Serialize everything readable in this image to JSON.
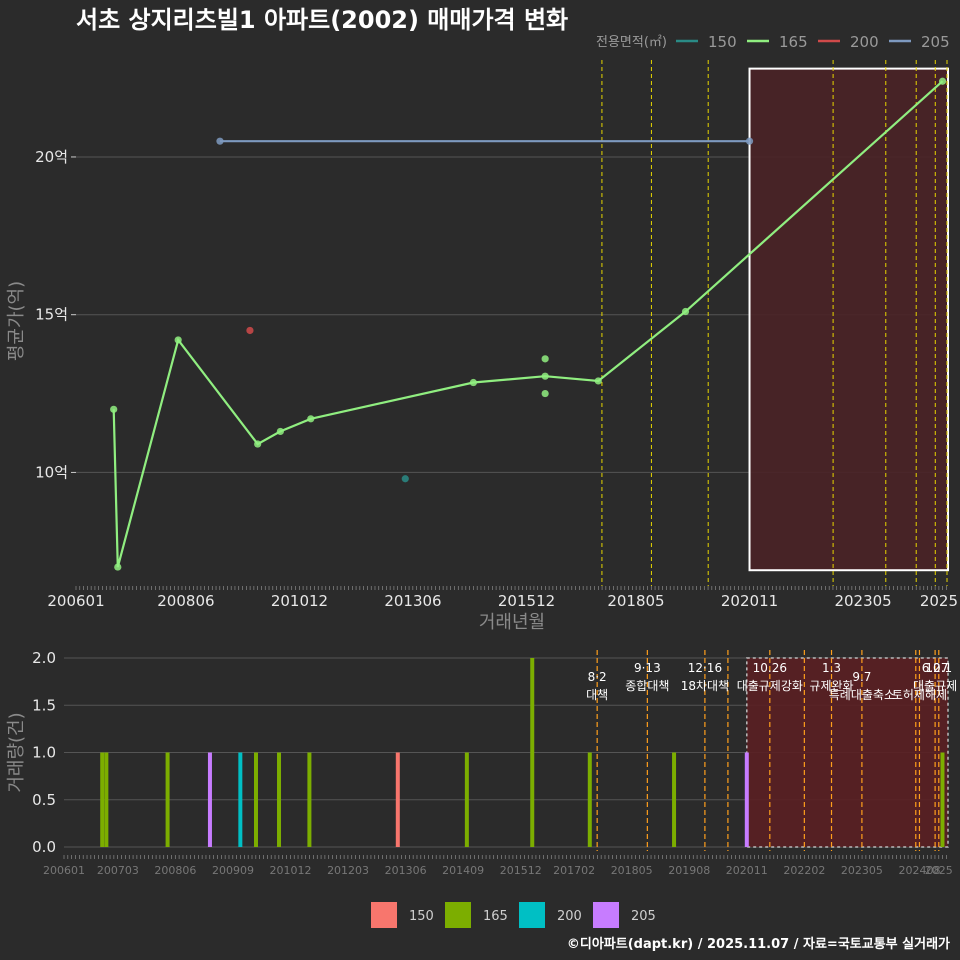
{
  "title": "서초 상지리츠빌1 아파트(2002) 매매가격 변화",
  "footer": "©디아파트(dapt.kr) / 2025.11.07 / 자료=국토교통부 실거래가",
  "legend_title": "전용면적(㎡)",
  "colors": {
    "bg": "#2b2b2b",
    "grid": "#555555",
    "s150": "#f8766d",
    "s165": "#7cae00",
    "s200": "#00bfc4",
    "s205": "#c77cff",
    "line150": "#2a8b86",
    "line165": "#90ee80",
    "line200": "#d04a4a",
    "line205": "#7e9ac0",
    "vline": "#e6d500",
    "vline_bottom": "#ff9f1c",
    "highlight_fill": "#4a2226",
    "highlight_fill_bottom": "#5a1f22"
  },
  "chart_data": [
    {
      "type": "line",
      "title": "서초 상지리츠빌1 아파트(2002) 매매가격 변화",
      "xlabel": "거래년월",
      "ylabel": "평균가(억)",
      "x_ticks": [
        "200601",
        "200806",
        "201012",
        "201306",
        "201512",
        "201805",
        "202011",
        "202305",
        "2025"
      ],
      "x_tick_values": [
        2006.0,
        2008.42,
        2010.92,
        2013.42,
        2015.92,
        2018.33,
        2020.83,
        2023.33,
        2025.0
      ],
      "y_ticks": [
        "10억",
        "15억",
        "20억"
      ],
      "y_tick_values": [
        10,
        15,
        20
      ],
      "xlim": [
        2006.0,
        2025.2
      ],
      "ylim": [
        6.4,
        23.2
      ],
      "legend": [
        {
          "label": "150",
          "color": "#2a8b86"
        },
        {
          "label": "165",
          "color": "#90ee80"
        },
        {
          "label": "200",
          "color": "#d04a4a"
        },
        {
          "label": "205",
          "color": "#7e9ac0"
        }
      ],
      "series": [
        {
          "name": "150",
          "x": [
            2013.25
          ],
          "y": [
            9.8
          ],
          "line": false
        },
        {
          "name": "165",
          "x": [
            2006.83,
            2006.92,
            2008.25,
            2010.0,
            2010.5,
            2011.17,
            2014.75,
            2016.33,
            2017.5,
            2019.42,
            2025.08
          ],
          "y": [
            12.0,
            7.0,
            14.2,
            10.9,
            11.3,
            11.7,
            12.85,
            13.05,
            12.9,
            15.1,
            22.4
          ],
          "line": true
        },
        {
          "name": "165_extra",
          "x": [
            2016.33,
            2016.33
          ],
          "y": [
            13.6,
            12.5
          ],
          "line": false
        },
        {
          "name": "200",
          "x": [
            2009.83
          ],
          "y": [
            14.5
          ],
          "line": false
        },
        {
          "name": "205",
          "x": [
            2009.17,
            2020.83
          ],
          "y": [
            20.5,
            20.5
          ],
          "line": true
        }
      ],
      "highlight": {
        "x_start": 2020.83,
        "x_end": 2025.2,
        "y_start": 6.9,
        "y_end": 22.8
      },
      "vlines": [
        2017.58,
        2018.67,
        2019.92,
        2022.67,
        2023.83,
        2024.5,
        2024.92,
        2025.25,
        2025.45
      ]
    },
    {
      "type": "bar",
      "xlabel": "",
      "ylabel": "거래량(건)",
      "x_ticks": [
        "200601",
        "200703",
        "200806",
        "200909",
        "201012",
        "201203",
        "201306",
        "201409",
        "201512",
        "201702",
        "201805",
        "201908",
        "202011",
        "202202",
        "202305",
        "202408",
        "2025"
      ],
      "x_tick_values": [
        2006.0,
        2007.17,
        2008.42,
        2009.67,
        2010.92,
        2012.17,
        2013.42,
        2014.67,
        2015.92,
        2017.08,
        2018.33,
        2019.58,
        2020.83,
        2022.08,
        2023.33,
        2024.58,
        2025.0
      ],
      "y_ticks": [
        "0.0",
        "0.5",
        "1.0",
        "1.5",
        "2.0"
      ],
      "y_tick_values": [
        0,
        0.5,
        1.0,
        1.5,
        2.0
      ],
      "ylim": [
        0,
        2.0
      ],
      "xlim": [
        2006.0,
        2025.2
      ],
      "legend": [
        {
          "label": "150",
          "color": "#f8766d"
        },
        {
          "label": "165",
          "color": "#7cae00"
        },
        {
          "label": "200",
          "color": "#00bfc4"
        },
        {
          "label": "205",
          "color": "#c77cff"
        }
      ],
      "bars": [
        {
          "x": 2006.83,
          "value": 1,
          "series": "165"
        },
        {
          "x": 2006.92,
          "value": 1,
          "series": "165"
        },
        {
          "x": 2008.25,
          "value": 1,
          "series": "165"
        },
        {
          "x": 2009.17,
          "value": 1,
          "series": "205"
        },
        {
          "x": 2009.83,
          "value": 1,
          "series": "200"
        },
        {
          "x": 2010.17,
          "value": 1,
          "series": "165"
        },
        {
          "x": 2010.67,
          "value": 1,
          "series": "165"
        },
        {
          "x": 2011.33,
          "value": 1,
          "series": "165"
        },
        {
          "x": 2013.25,
          "value": 1,
          "series": "150"
        },
        {
          "x": 2014.75,
          "value": 1,
          "series": "165"
        },
        {
          "x": 2016.17,
          "value": 2,
          "series": "165"
        },
        {
          "x": 2017.42,
          "value": 1,
          "series": "165"
        },
        {
          "x": 2019.25,
          "value": 1,
          "series": "165"
        },
        {
          "x": 2020.83,
          "value": 1,
          "series": "205"
        },
        {
          "x": 2025.08,
          "value": 1,
          "series": "165"
        }
      ],
      "highlight": {
        "x_start": 2020.83,
        "x_end": 2025.2
      },
      "vlines": [
        2017.58,
        2018.67,
        2019.92,
        2020.42,
        2021.33,
        2022.08,
        2022.67,
        2023.33,
        2024.5,
        2024.58,
        2024.92,
        2025.0
      ],
      "annotations": [
        {
          "date": "8·2",
          "label": "대책",
          "x": 2017.58,
          "row": 1
        },
        {
          "date": "9·13",
          "label": "종합대책",
          "x": 2018.67,
          "row": 0
        },
        {
          "date": "12·16",
          "label": "18차대책",
          "x": 2019.92,
          "row": 0
        },
        {
          "date": "10.26",
          "label": "대출규제강화",
          "x": 2021.33,
          "row": 0
        },
        {
          "date": "1.3",
          "label": "규제완화",
          "x": 2022.67,
          "row": 0
        },
        {
          "date": "9.7",
          "label": "특례대출축소",
          "x": 2023.33,
          "row": 1
        },
        {
          "date": "",
          "label": "토허제해제",
          "x": 2024.58,
          "row": 1
        },
        {
          "date": "6.27",
          "label": "대출규제",
          "x": 2024.92,
          "row": 0
        },
        {
          "date": "10.1",
          "label": "",
          "x": 2025.0,
          "row": 0
        }
      ]
    }
  ]
}
